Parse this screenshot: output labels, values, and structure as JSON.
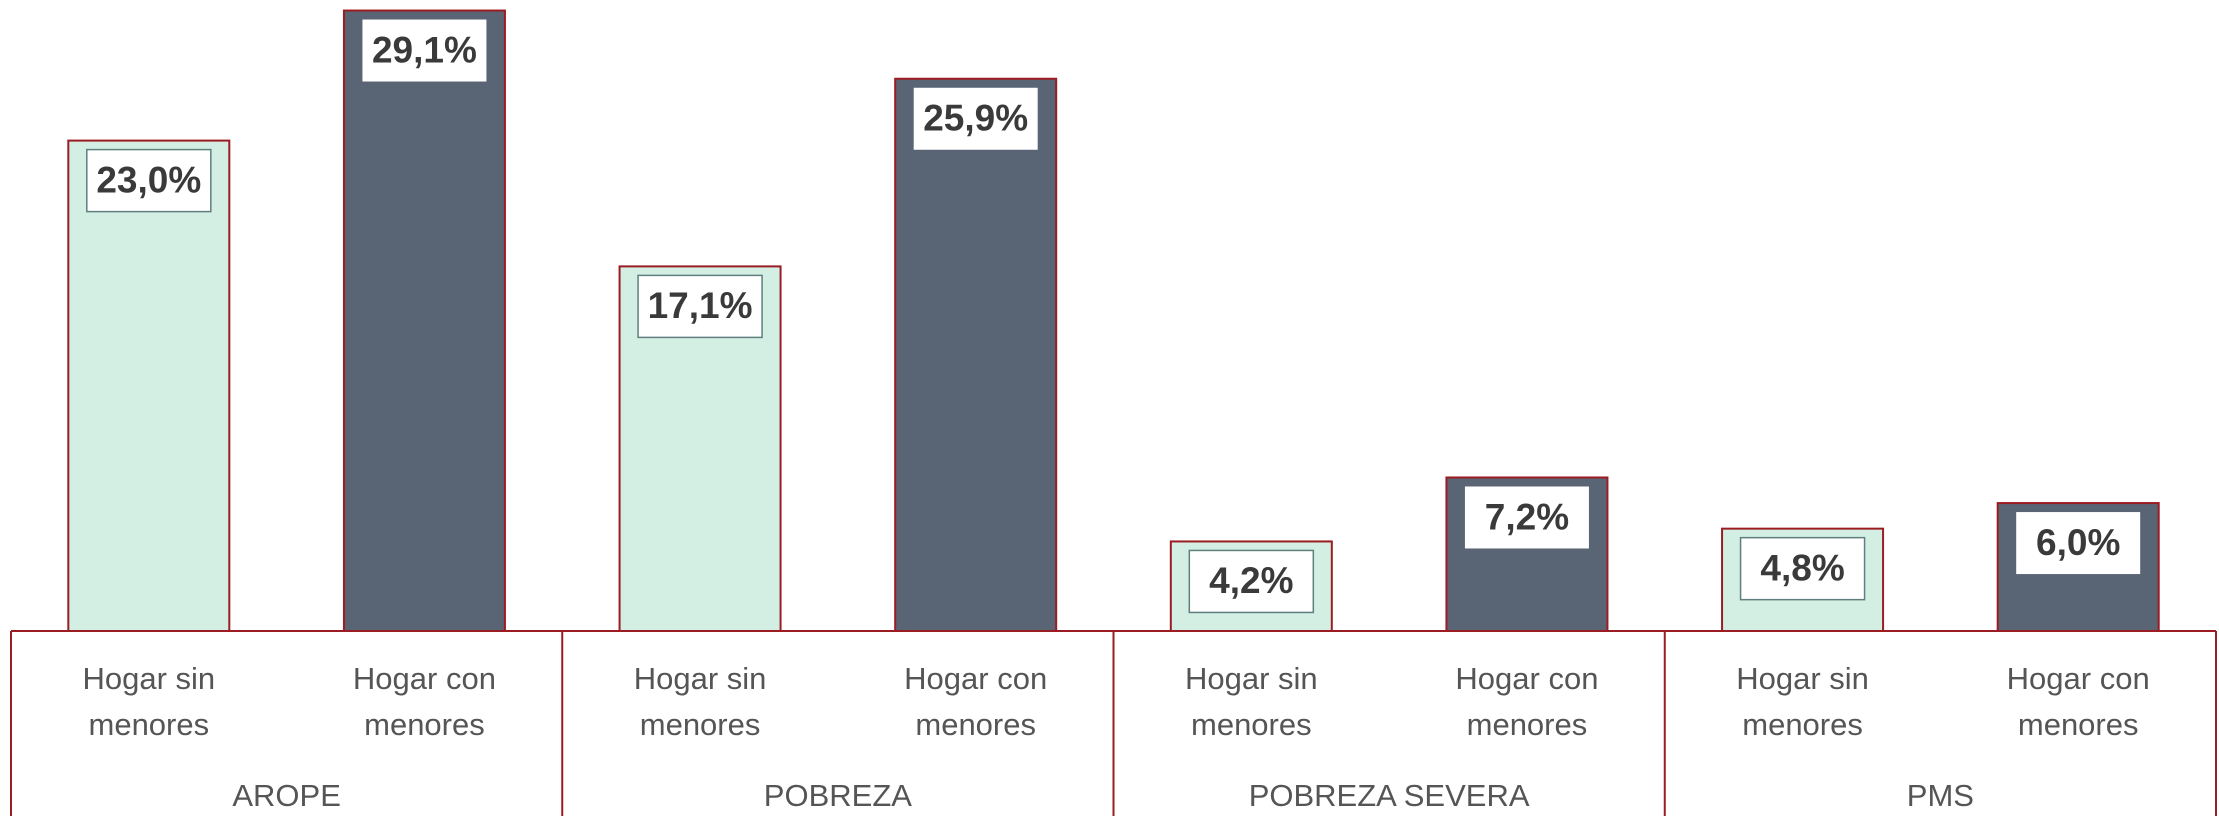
{
  "chart_data": {
    "type": "bar",
    "categories": [
      "AROPE",
      "POBREZA",
      "POBREZA SEVERA",
      "PMS"
    ],
    "series": [
      {
        "name": "Hogar sin menores",
        "color": "#d3efe3",
        "values": [
          23.0,
          17.1,
          4.2,
          4.8
        ],
        "value_labels": [
          "23,0%",
          "17,1%",
          "4,2%",
          "4,8%"
        ]
      },
      {
        "name": "Hogar con menores",
        "color": "#596474",
        "values": [
          29.1,
          25.9,
          7.2,
          6.0
        ],
        "value_labels": [
          "29,1%",
          "25,9%",
          "7,2%",
          "6,0%"
        ]
      }
    ],
    "ylim": [
      0,
      29.5
    ]
  }
}
